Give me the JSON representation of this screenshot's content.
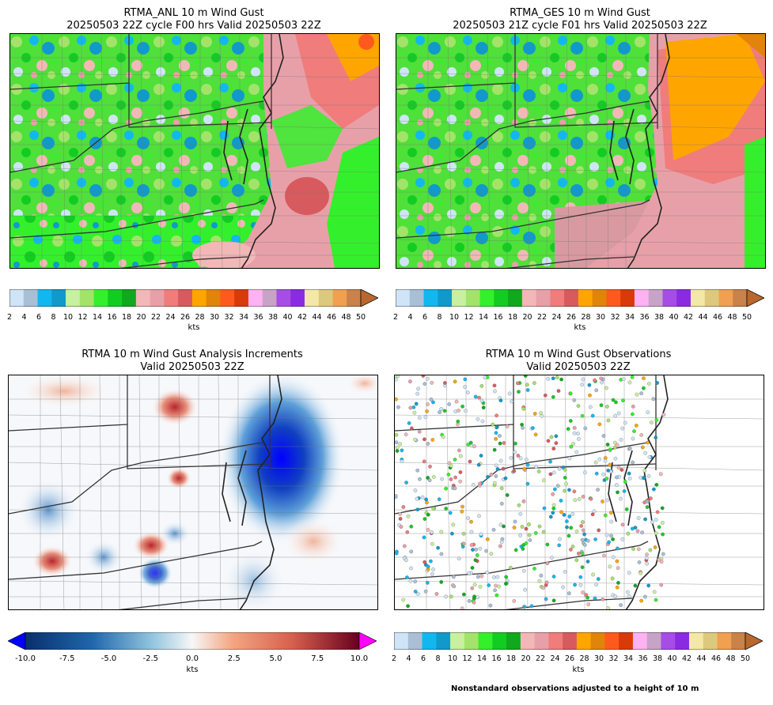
{
  "panels": [
    {
      "id": "anl",
      "title_line1": "RTMA_ANL 10 m Wind Gust",
      "title_line2": "20250503 22Z cycle F00 hrs Valid 20250503 22Z"
    },
    {
      "id": "ges",
      "title_line1": "RTMA_GES 10 m Wind Gust",
      "title_line2": "20250503 21Z cycle F01 hrs Valid 20250503 22Z"
    },
    {
      "id": "inc",
      "title_line1": "RTMA 10 m Wind Gust Analysis Increments",
      "title_line2": "Valid 20250503 22Z"
    },
    {
      "id": "obs",
      "title_line1": "RTMA 10 m Wind Gust Observations",
      "title_line2": "Valid 20250503 22Z"
    }
  ],
  "gust_colorbar": {
    "units": "kts",
    "ticks": [
      "2",
      "4",
      "6",
      "8",
      "10",
      "12",
      "14",
      "16",
      "18",
      "20",
      "22",
      "24",
      "26",
      "28",
      "30",
      "32",
      "34",
      "36",
      "38",
      "40",
      "42",
      "44",
      "46",
      "48",
      "50"
    ],
    "colors": [
      "#cfe5f7",
      "#a9bfd6",
      "#13b7ef",
      "#1199cc",
      "#c8f0a0",
      "#a4e36a",
      "#34f02c",
      "#12cc22",
      "#10a81c",
      "#f2b8b8",
      "#e8a0a8",
      "#f07c7c",
      "#d75a5e",
      "#ffa500",
      "#e0840a",
      "#ff5a1e",
      "#d83a0a",
      "#ffb2f2",
      "#c7a4c7",
      "#a64de6",
      "#8a2be2",
      "#f4e8a8",
      "#ddc97e",
      "#f0a050",
      "#c8824a"
    ],
    "extend_color": "#b8672e"
  },
  "increment_colorbar": {
    "units": "kts",
    "ticks": [
      "-10.0",
      "-7.5",
      "-5.0",
      "-2.5",
      "0.0",
      "2.5",
      "5.0",
      "7.5",
      "10.0"
    ],
    "under_color": "#0000ff",
    "over_color": "#ff00ff"
  },
  "footnote": "Nonstandard observations adjusted to a height of 10 m"
}
